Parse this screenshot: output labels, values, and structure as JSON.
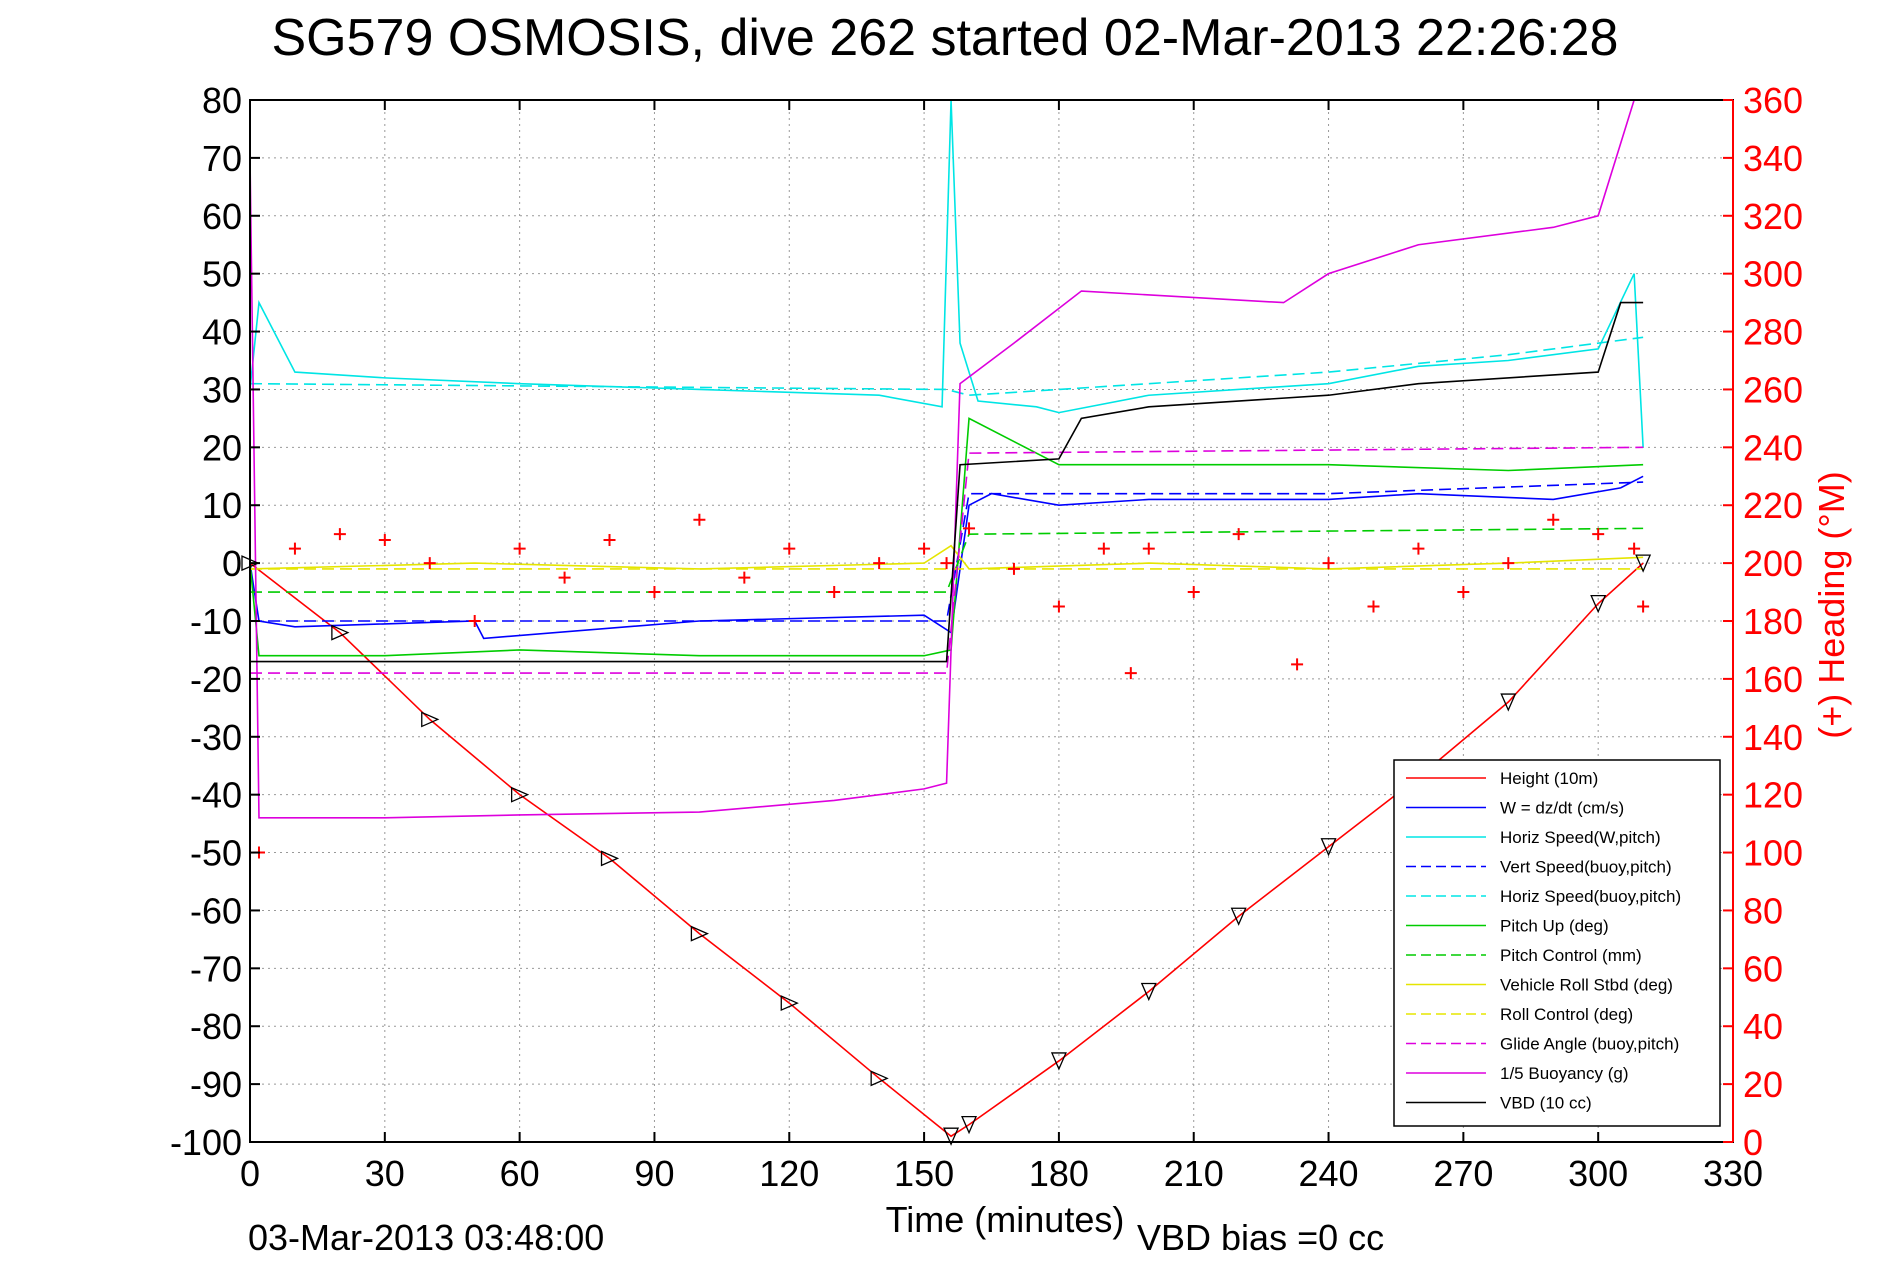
{
  "chart_data": {
    "type": "line",
    "title": "SG579 OSMOSIS, dive 262 started 02-Mar-2013 22:26:28",
    "xlabel": "Time (minutes)",
    "ylabel_right": "(+) Heading (°M)",
    "footer_left": "03-Mar-2013 03:48:00",
    "footer_right": "VBD bias =0 cc",
    "xlim": [
      0,
      330
    ],
    "ylim": [
      -100,
      80
    ],
    "ylim_right": [
      0,
      360
    ],
    "x_ticks": [
      "0",
      "30",
      "60",
      "90",
      "120",
      "150",
      "180",
      "210",
      "240",
      "270",
      "300",
      "330"
    ],
    "y_ticks": [
      "80",
      "70",
      "60",
      "50",
      "40",
      "30",
      "20",
      "10",
      "0",
      "-10",
      "-20",
      "-30",
      "-40",
      "-50",
      "-60",
      "-70",
      "-80",
      "-90",
      "-100"
    ],
    "y_ticks_right": [
      "360",
      "340",
      "320",
      "300",
      "280",
      "260",
      "240",
      "220",
      "200",
      "180",
      "160",
      "140",
      "120",
      "100",
      "80",
      "60",
      "40",
      "20",
      "0"
    ],
    "grid": true,
    "legend_position": "bottom-right",
    "series": [
      {
        "name": "Height (10m)",
        "color": "#ff0000",
        "style": "solid",
        "x": [
          0,
          20,
          40,
          60,
          80,
          100,
          120,
          140,
          156,
          160,
          180,
          200,
          220,
          240,
          260,
          280,
          300,
          310
        ],
        "y": [
          0,
          -12,
          -27,
          -40,
          -51,
          -64,
          -76,
          -89,
          -99,
          -97,
          -86,
          -74,
          -61,
          -49,
          -37,
          -24,
          -7,
          0
        ]
      },
      {
        "name": "W = dz/dt (cm/s)",
        "color": "#0000ff",
        "style": "solid",
        "x": [
          0,
          2,
          10,
          50,
          52,
          100,
          150,
          156,
          160,
          165,
          180,
          200,
          240,
          260,
          290,
          305,
          310
        ],
        "y": [
          0,
          -10,
          -11,
          -10,
          -13,
          -10,
          -9,
          -12,
          10,
          12,
          10,
          11,
          11,
          12,
          11,
          13,
          15
        ]
      },
      {
        "name": "Horiz Speed(W,pitch)",
        "color": "#00e5e5",
        "style": "solid",
        "x": [
          0,
          2,
          10,
          30,
          60,
          100,
          140,
          154,
          156,
          158,
          162,
          175,
          180,
          200,
          240,
          260,
          280,
          300,
          308,
          310
        ],
        "y": [
          30,
          45,
          33,
          32,
          31,
          30,
          29,
          27,
          80,
          38,
          28,
          27,
          26,
          29,
          31,
          34,
          35,
          37,
          50,
          20
        ]
      },
      {
        "name": "Vert Speed(buoy,pitch)",
        "color": "#0000ff",
        "style": "dashed",
        "x": [
          0,
          155,
          160,
          240,
          310
        ],
        "y": [
          -10,
          -10,
          12,
          12,
          14
        ]
      },
      {
        "name": "Horiz Speed(buoy,pitch)",
        "color": "#00e5e5",
        "style": "dashed",
        "x": [
          0,
          155,
          160,
          200,
          240,
          280,
          310
        ],
        "y": [
          31,
          30,
          29,
          31,
          33,
          36,
          39
        ]
      },
      {
        "name": "Pitch Up (deg)",
        "color": "#00cc00",
        "style": "solid",
        "x": [
          0,
          2,
          30,
          60,
          100,
          150,
          156,
          160,
          180,
          240,
          280,
          310
        ],
        "y": [
          0,
          -16,
          -16,
          -15,
          -16,
          -16,
          -15,
          25,
          17,
          17,
          16,
          17
        ]
      },
      {
        "name": "Pitch Control (mm)",
        "color": "#00cc00",
        "style": "dashed",
        "x": [
          0,
          155,
          160,
          310
        ],
        "y": [
          -5,
          -5,
          5,
          6
        ]
      },
      {
        "name": "Vehicle Roll Stbd (deg)",
        "color": "#e5e500",
        "style": "solid",
        "x": [
          0,
          50,
          100,
          150,
          156,
          160,
          200,
          240,
          280,
          310
        ],
        "y": [
          -1,
          0,
          -1,
          0,
          3,
          -1,
          0,
          -1,
          0,
          1
        ]
      },
      {
        "name": "Roll Control (deg)",
        "color": "#e5e500",
        "style": "dashed",
        "x": [
          0,
          310
        ],
        "y": [
          -1,
          -1
        ]
      },
      {
        "name": "Glide Angle (buoy,pitch)",
        "color": "#dd00dd",
        "style": "dashed",
        "x": [
          0,
          155,
          160,
          310
        ],
        "y": [
          -19,
          -19,
          19,
          20
        ]
      },
      {
        "name": "1/5 Buoyancy (g)",
        "color": "#dd00dd",
        "style": "solid",
        "x": [
          0,
          2,
          30,
          60,
          100,
          130,
          150,
          155,
          158,
          170,
          185,
          230,
          240,
          260,
          290,
          300,
          308
        ],
        "y": [
          70,
          -44,
          -44,
          -43.5,
          -43,
          -41,
          -39,
          -38,
          31,
          38,
          47,
          45,
          50,
          55,
          58,
          60,
          80
        ]
      },
      {
        "name": "VBD (10 cc)",
        "color": "#000000",
        "style": "solid",
        "x": [
          0,
          155,
          158,
          180,
          185,
          200,
          240,
          260,
          300,
          305,
          310
        ],
        "y": [
          -17,
          -17,
          17,
          18,
          25,
          27,
          29,
          31,
          33,
          45,
          45
        ]
      }
    ],
    "heading_series": {
      "marker": "+",
      "color": "#ff0000",
      "axis": "right",
      "x": [
        2,
        10,
        20,
        30,
        40,
        50,
        60,
        70,
        80,
        90,
        100,
        110,
        120,
        130,
        140,
        150,
        155,
        160,
        170,
        180,
        190,
        196,
        200,
        210,
        220,
        233,
        240,
        250,
        260,
        270,
        280,
        290,
        300,
        308,
        310
      ],
      "y": [
        100,
        205,
        210,
        208,
        200,
        180,
        205,
        195,
        208,
        190,
        215,
        195,
        205,
        190,
        200,
        205,
        200,
        212,
        198,
        185,
        205,
        162,
        205,
        190,
        210,
        165,
        200,
        185,
        205,
        190,
        200,
        215,
        210,
        205,
        185
      ]
    }
  }
}
